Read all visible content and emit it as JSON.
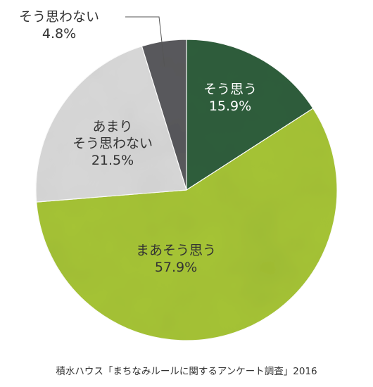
{
  "chart_data": {
    "type": "pie",
    "start": "12 o'clock",
    "direction": "clockwise",
    "slices": [
      {
        "label": "そう思う",
        "value": 15.9,
        "value_text": "15.9%",
        "color": "#2f5e3c",
        "text_color": "#ffffff"
      },
      {
        "label": "まあそう思う",
        "value": 57.9,
        "value_text": "57.9%",
        "color": "#a6c436",
        "text_color": "#333333"
      },
      {
        "label": "あまり\nそう思わない",
        "value": 21.5,
        "value_text": "21.5%",
        "color": "#d9d9d9",
        "text_color": "#333333"
      },
      {
        "label": "そう思わない",
        "value": 4.8,
        "value_text": "4.8%",
        "color": "#5a5a5d",
        "text_color": "#333333",
        "label_outside": true
      }
    ],
    "source": "積水ハウス「まちなみルールに関するアンケート調査」2016"
  }
}
